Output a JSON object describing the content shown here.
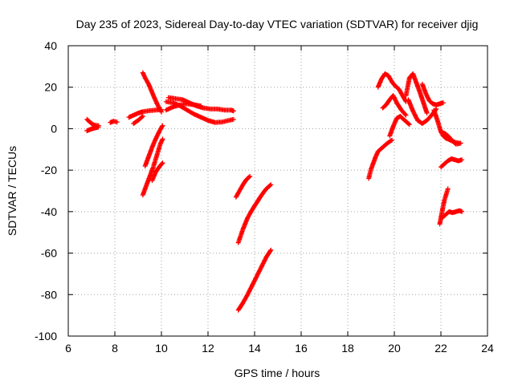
{
  "chart_data": {
    "type": "scatter",
    "title": "Day 235 of 2023, Sidereal Day-to-day VTEC variation (SDTVAR) for receiver djig",
    "xlabel": "GPS time / hours",
    "ylabel": "SDTVAR / TECUs",
    "xlim": [
      6,
      24
    ],
    "ylim": [
      -100,
      40
    ],
    "xticks": [
      6,
      8,
      10,
      12,
      14,
      16,
      18,
      20,
      22,
      24
    ],
    "yticks": [
      -100,
      -80,
      -60,
      -40,
      -20,
      0,
      20,
      40
    ],
    "grid": true,
    "marker": "+",
    "color": "#ff0000",
    "series": [
      {
        "name": "arc-01",
        "x": [
          6.8,
          6.9,
          7.0,
          7.1,
          7.3
        ],
        "y": [
          4.5,
          3.5,
          2.5,
          1.8,
          1.5
        ]
      },
      {
        "name": "arc-02",
        "x": [
          6.8,
          6.95,
          7.1,
          7.3
        ],
        "y": [
          -1.0,
          -0.3,
          0.2,
          0.8
        ]
      },
      {
        "name": "arc-03",
        "x": [
          7.8,
          7.95,
          8.1
        ],
        "y": [
          3.0,
          3.6,
          3.2
        ]
      },
      {
        "name": "arc-04",
        "x": [
          8.6,
          8.8,
          9.0,
          9.2,
          9.5,
          9.8,
          10.0
        ],
        "y": [
          5.5,
          6.5,
          7.5,
          8.2,
          8.7,
          9.0,
          9.2
        ]
      },
      {
        "name": "arc-05",
        "x": [
          8.8,
          9.0,
          9.2
        ],
        "y": [
          2.5,
          4.0,
          6.0
        ]
      },
      {
        "name": "arc-06",
        "x": [
          9.2,
          9.3,
          9.45,
          9.6,
          9.75,
          9.9,
          10.0
        ],
        "y": [
          27.0,
          24.5,
          21.5,
          17.5,
          13.5,
          10.0,
          8.0
        ]
      },
      {
        "name": "arc-07",
        "x": [
          9.3,
          9.45,
          9.6,
          9.75,
          9.9,
          10.05
        ],
        "y": [
          -18.0,
          -13.5,
          -9.0,
          -5.0,
          -1.5,
          1.5
        ]
      },
      {
        "name": "arc-08",
        "x": [
          9.2,
          9.35,
          9.5,
          9.65,
          9.8,
          9.95,
          10.05
        ],
        "y": [
          -32.0,
          -27.5,
          -23.0,
          -18.5,
          -13.0,
          -7.5,
          -5.0
        ]
      },
      {
        "name": "arc-09",
        "x": [
          9.6,
          9.75,
          9.9,
          10.05
        ],
        "y": [
          -25.0,
          -21.0,
          -18.5,
          -16.5
        ]
      },
      {
        "name": "arc-10",
        "x": [
          10.2,
          10.5,
          10.8,
          11.1,
          11.4,
          11.7,
          12.0,
          12.3,
          12.6,
          12.9,
          13.1
        ],
        "y": [
          13.0,
          12.5,
          11.0,
          9.0,
          7.0,
          5.5,
          4.0,
          3.0,
          3.2,
          4.0,
          4.5
        ]
      },
      {
        "name": "arc-11",
        "x": [
          10.3,
          10.6,
          10.9,
          11.2,
          11.5,
          11.8,
          12.1,
          12.4,
          12.7,
          13.0,
          13.1
        ],
        "y": [
          15.0,
          14.5,
          14.0,
          12.5,
          11.0,
          10.0,
          9.5,
          9.5,
          9.0,
          9.0,
          8.5
        ]
      },
      {
        "name": "arc-12",
        "x": [
          10.2,
          10.5,
          10.8,
          11.1,
          11.4,
          11.7
        ],
        "y": [
          9.0,
          10.5,
          11.5,
          12.0,
          11.5,
          11.0
        ]
      },
      {
        "name": "arc-13",
        "x": [
          13.2,
          13.35,
          13.5,
          13.65,
          13.8
        ],
        "y": [
          -33.0,
          -30.0,
          -27.0,
          -24.5,
          -23.0
        ]
      },
      {
        "name": "arc-14",
        "x": [
          13.3,
          13.5,
          13.7,
          13.9,
          14.1,
          14.3,
          14.5,
          14.7
        ],
        "y": [
          -55.0,
          -48.5,
          -43.0,
          -39.0,
          -35.5,
          -32.0,
          -29.0,
          -27.0
        ]
      },
      {
        "name": "arc-15",
        "x": [
          13.3,
          13.5,
          13.7,
          13.9,
          14.1,
          14.3,
          14.5,
          14.7
        ],
        "y": [
          -87.5,
          -84.0,
          -80.0,
          -75.5,
          -71.0,
          -66.5,
          -62.0,
          -58.5
        ]
      },
      {
        "name": "arc-16",
        "x": [
          18.9,
          19.0,
          19.1,
          19.2,
          19.3,
          19.5,
          19.7,
          19.9
        ],
        "y": [
          -24.0,
          -19.5,
          -16.5,
          -13.5,
          -11.0,
          -9.0,
          -7.0,
          -5.5
        ]
      },
      {
        "name": "arc-17",
        "x": [
          19.3,
          19.45,
          19.6,
          19.75,
          19.9,
          20.05,
          20.2,
          20.35,
          20.5
        ],
        "y": [
          20.0,
          24.0,
          26.5,
          25.5,
          22.5,
          20.5,
          19.0,
          16.0,
          13.0
        ]
      },
      {
        "name": "arc-18",
        "x": [
          19.5,
          19.65,
          19.8,
          19.95,
          20.1,
          20.3,
          20.5
        ],
        "y": [
          10.0,
          11.5,
          14.0,
          16.0,
          12.5,
          9.0,
          6.5
        ]
      },
      {
        "name": "arc-19",
        "x": [
          19.8,
          19.95,
          20.1,
          20.25,
          20.45,
          20.65
        ],
        "y": [
          -3.5,
          1.0,
          5.0,
          6.0,
          4.0,
          2.0
        ]
      },
      {
        "name": "arc-20",
        "x": [
          20.5,
          20.65,
          20.8,
          20.95,
          21.1,
          21.25,
          21.4
        ],
        "y": [
          16.0,
          24.5,
          26.5,
          22.0,
          17.5,
          12.5,
          7.5
        ]
      },
      {
        "name": "arc-21",
        "x": [
          20.6,
          20.8,
          21.0,
          21.2,
          21.4,
          21.6,
          21.8
        ],
        "y": [
          14.0,
          8.5,
          4.0,
          2.5,
          4.0,
          6.5,
          9.5
        ]
      },
      {
        "name": "arc-22",
        "x": [
          21.2,
          21.35,
          21.5,
          21.65,
          21.8,
          21.95,
          22.1
        ],
        "y": [
          21.5,
          17.0,
          13.5,
          12.0,
          11.5,
          12.0,
          12.5
        ]
      },
      {
        "name": "arc-23",
        "x": [
          21.7,
          21.85,
          22.0,
          22.1,
          22.2,
          22.4,
          22.6,
          22.8
        ],
        "y": [
          9.0,
          4.0,
          -1.5,
          -3.5,
          -4.5,
          -5.5,
          -6.5,
          -7.0
        ]
      },
      {
        "name": "arc-24",
        "x": [
          22.0,
          22.1,
          22.2,
          22.35,
          22.5,
          22.65,
          22.85
        ],
        "y": [
          -1.5,
          -2.0,
          -2.5,
          -4.0,
          -6.0,
          -7.5,
          -7.0
        ]
      },
      {
        "name": "arc-25",
        "x": [
          22.0,
          22.15,
          22.3,
          22.45,
          22.6,
          22.75,
          22.9
        ],
        "y": [
          -18.5,
          -17.0,
          -15.5,
          -14.5,
          -15.0,
          -15.5,
          -15.0
        ]
      },
      {
        "name": "arc-26",
        "x": [
          21.95,
          22.05,
          22.15,
          22.3
        ],
        "y": [
          -46.0,
          -40.0,
          -34.5,
          -29.0
        ]
      },
      {
        "name": "arc-27",
        "x": [
          22.05,
          22.2,
          22.35,
          22.5,
          22.65,
          22.8,
          22.9
        ],
        "y": [
          -43.0,
          -41.5,
          -40.0,
          -40.5,
          -40.0,
          -39.5,
          -40.0
        ]
      }
    ]
  }
}
